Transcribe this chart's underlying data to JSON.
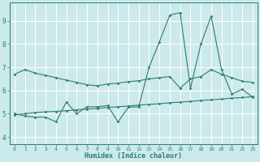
{
  "xlabel": "Humidex (Indice chaleur)",
  "bg_color": "#cce9ec",
  "grid_color": "#ffffff",
  "line_color": "#2d7d6f",
  "xlim": [
    -0.5,
    23.5
  ],
  "ylim": [
    3.7,
    9.8
  ],
  "yticks": [
    4,
    5,
    6,
    7,
    8,
    9
  ],
  "xticks": [
    0,
    1,
    2,
    3,
    4,
    5,
    6,
    7,
    8,
    9,
    10,
    11,
    12,
    13,
    14,
    15,
    16,
    17,
    18,
    19,
    20,
    21,
    22,
    23
  ],
  "line1_x": [
    0,
    1,
    2,
    3,
    4,
    5,
    6,
    7,
    8,
    9,
    10,
    11,
    12,
    13,
    14,
    15,
    16,
    17,
    18,
    19,
    20,
    21,
    22,
    23
  ],
  "line1_y": [
    6.7,
    6.9,
    6.75,
    6.65,
    6.55,
    6.45,
    6.35,
    6.25,
    6.2,
    6.28,
    6.32,
    6.38,
    6.42,
    6.5,
    6.55,
    6.6,
    6.1,
    6.5,
    6.6,
    6.9,
    6.7,
    6.55,
    6.4,
    6.35
  ],
  "line2_x": [
    0,
    1,
    2,
    3,
    4,
    5,
    6,
    7,
    8,
    9,
    10,
    11,
    12,
    13,
    14,
    15,
    16,
    17,
    18,
    19,
    20,
    21,
    22,
    23
  ],
  "line2_y": [
    4.95,
    5.0,
    5.05,
    5.08,
    5.1,
    5.13,
    5.17,
    5.2,
    5.23,
    5.27,
    5.3,
    5.33,
    5.37,
    5.4,
    5.43,
    5.47,
    5.5,
    5.53,
    5.57,
    5.6,
    5.63,
    5.67,
    5.7,
    5.73
  ],
  "line3_x": [
    0,
    1,
    2,
    3,
    4,
    5,
    6,
    7,
    8,
    9,
    10,
    11,
    12,
    13,
    14,
    15,
    16,
    17,
    18,
    19,
    20,
    21,
    22,
    23
  ],
  "line3_y": [
    5.0,
    4.9,
    4.85,
    4.85,
    4.65,
    5.5,
    5.0,
    5.3,
    5.3,
    5.35,
    4.65,
    5.28,
    5.3,
    7.0,
    8.1,
    9.25,
    9.35,
    6.1,
    8.0,
    9.2,
    6.9,
    5.85,
    6.05,
    5.72
  ]
}
